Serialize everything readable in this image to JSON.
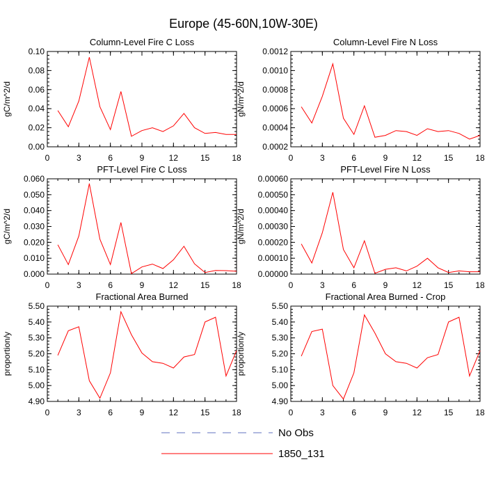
{
  "title": "Europe (45-60N,10W-30E)",
  "colors": {
    "series": "#ff0000",
    "obs": "#6070c0",
    "axis": "#000000"
  },
  "legend": [
    {
      "label": "No Obs",
      "style": "dashed",
      "color": "#6070c0"
    },
    {
      "label": "1850_131",
      "style": "solid",
      "color": "#ff0000"
    }
  ],
  "chart_data": [
    {
      "type": "line",
      "title": "Column-Level Fire C Loss",
      "ylabel": "gC/m^2/d",
      "xlim": [
        0,
        18
      ],
      "xticks": [
        "0",
        "3",
        "6",
        "9",
        "12",
        "15",
        "18"
      ],
      "ylim": [
        0,
        0.1
      ],
      "yticks": [
        "0.00",
        "0.02",
        "0.04",
        "0.06",
        "0.08",
        "0.10"
      ],
      "series": [
        {
          "name": "1850_131",
          "x": [
            1,
            2,
            3,
            4,
            5,
            6,
            7,
            8,
            9,
            10,
            11,
            12,
            13,
            14,
            15,
            16,
            17,
            18
          ],
          "values": [
            0.038,
            0.021,
            0.048,
            0.094,
            0.042,
            0.018,
            0.058,
            0.011,
            0.017,
            0.02,
            0.016,
            0.022,
            0.035,
            0.02,
            0.014,
            0.015,
            0.013,
            0.013
          ]
        }
      ]
    },
    {
      "type": "line",
      "title": "Column-Level Fire N Loss",
      "ylabel": "gN/m^2/d",
      "xlim": [
        0,
        18
      ],
      "xticks": [
        "0",
        "3",
        "6",
        "9",
        "12",
        "15",
        "18"
      ],
      "ylim": [
        0.0002,
        0.0012
      ],
      "yticks": [
        "0.0002",
        "0.0004",
        "0.0006",
        "0.0008",
        "0.0010",
        "0.0012"
      ],
      "series": [
        {
          "name": "1850_131",
          "x": [
            1,
            2,
            3,
            4,
            5,
            6,
            7,
            8,
            9,
            10,
            11,
            12,
            13,
            14,
            15,
            16,
            17,
            18
          ],
          "values": [
            0.00062,
            0.00045,
            0.00073,
            0.00107,
            0.0005,
            0.00033,
            0.00063,
            0.0003,
            0.00032,
            0.00037,
            0.00036,
            0.00032,
            0.00039,
            0.00036,
            0.00037,
            0.00034,
            0.00028,
            0.00032
          ]
        }
      ]
    },
    {
      "type": "line",
      "title": "PFT-Level Fire C Loss",
      "ylabel": "gC/m^2/d",
      "xlim": [
        0,
        18
      ],
      "xticks": [
        "0",
        "3",
        "6",
        "9",
        "12",
        "15",
        "18"
      ],
      "ylim": [
        0,
        0.06
      ],
      "yticks": [
        "0.000",
        "0.010",
        "0.020",
        "0.030",
        "0.040",
        "0.050",
        "0.060"
      ],
      "series": [
        {
          "name": "1850_131",
          "x": [
            1,
            2,
            3,
            4,
            5,
            6,
            7,
            8,
            9,
            10,
            11,
            12,
            13,
            14,
            15,
            16,
            17,
            18
          ],
          "values": [
            0.0185,
            0.006,
            0.024,
            0.057,
            0.022,
            0.006,
            0.0325,
            0.0003,
            0.0045,
            0.0063,
            0.0035,
            0.009,
            0.0175,
            0.0065,
            0.001,
            0.0023,
            0.0022,
            0.0018
          ]
        }
      ]
    },
    {
      "type": "line",
      "title": "PFT-Level Fire N Loss",
      "ylabel": "gN/m^2/d",
      "xlim": [
        0,
        18
      ],
      "xticks": [
        "0",
        "3",
        "6",
        "9",
        "12",
        "15",
        "18"
      ],
      "ylim": [
        0,
        0.0006
      ],
      "yticks": [
        "0.00000",
        "0.00010",
        "0.00020",
        "0.00030",
        "0.00040",
        "0.00050",
        "0.00060"
      ],
      "series": [
        {
          "name": "1850_131",
          "x": [
            1,
            2,
            3,
            4,
            5,
            6,
            7,
            8,
            9,
            10,
            11,
            12,
            13,
            14,
            15,
            16,
            17,
            18
          ],
          "values": [
            0.00019,
            7e-05,
            0.00026,
            0.000515,
            0.000155,
            4e-05,
            0.00021,
            5e-06,
            3e-05,
            4e-05,
            2e-05,
            5e-05,
            0.0001,
            4e-05,
            1e-05,
            2e-05,
            1.5e-05,
            1.5e-05
          ]
        }
      ]
    },
    {
      "type": "line",
      "title": "Fractional Area Burned",
      "ylabel": "proportion/y",
      "xlim": [
        0,
        18
      ],
      "xticks": [
        "0",
        "3",
        "6",
        "9",
        "12",
        "15",
        "18"
      ],
      "ylim": [
        4.9,
        5.5
      ],
      "yticks": [
        "4.90",
        "5.00",
        "5.10",
        "5.20",
        "5.30",
        "5.40",
        "5.50"
      ],
      "series": [
        {
          "name": "1850_131",
          "x": [
            1,
            2,
            3,
            4,
            5,
            6,
            7,
            8,
            9,
            10,
            11,
            12,
            13,
            14,
            15,
            16,
            17,
            18
          ],
          "values": [
            5.19,
            5.345,
            5.37,
            5.03,
            4.92,
            5.08,
            5.465,
            5.32,
            5.205,
            5.15,
            5.14,
            5.11,
            5.18,
            5.195,
            5.4,
            5.43,
            5.06,
            5.22
          ]
        }
      ]
    },
    {
      "type": "line",
      "title": "Fractional Area Burned - Crop",
      "ylabel": "proportion/y",
      "xlim": [
        0,
        18
      ],
      "xticks": [
        "0",
        "3",
        "6",
        "9",
        "12",
        "15",
        "18"
      ],
      "ylim": [
        4.9,
        5.5
      ],
      "yticks": [
        "4.90",
        "5.00",
        "5.10",
        "5.20",
        "5.30",
        "5.40",
        "5.50"
      ],
      "series": [
        {
          "name": "1850_131",
          "x": [
            1,
            2,
            3,
            4,
            5,
            6,
            7,
            8,
            9,
            10,
            11,
            12,
            13,
            14,
            15,
            16,
            17,
            18
          ],
          "values": [
            5.185,
            5.34,
            5.355,
            5.0,
            4.915,
            5.08,
            5.445,
            5.33,
            5.2,
            5.15,
            5.14,
            5.11,
            5.175,
            5.195,
            5.4,
            5.43,
            5.06,
            5.22
          ]
        }
      ]
    }
  ]
}
